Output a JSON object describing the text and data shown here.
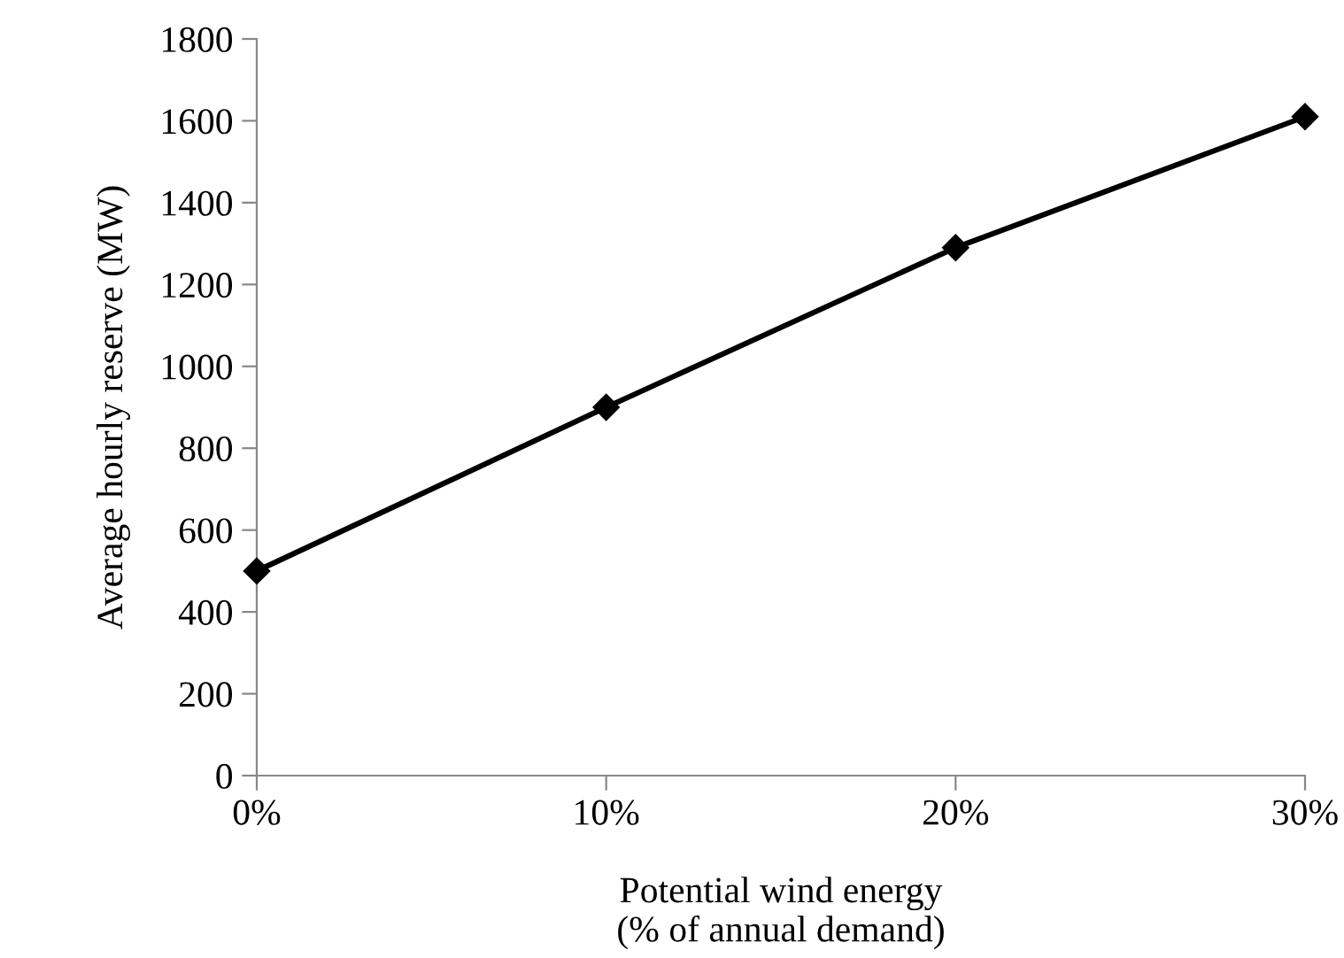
{
  "chart_data": {
    "type": "line",
    "xlabel": "Potential wind energy\n(% of annual demand)",
    "ylabel": "Average hourly reserve (MW)",
    "categories": [
      "0%",
      "10%",
      "20%",
      "30%"
    ],
    "series": [
      {
        "color": "#000000",
        "values": [
          500,
          900,
          1290,
          1610
        ]
      }
    ],
    "ylim": [
      0,
      1800
    ],
    "yticks": [
      0,
      200,
      400,
      600,
      800,
      1000,
      1200,
      1400,
      1600,
      1800
    ],
    "grid": false,
    "legend": false,
    "marker": "diamond",
    "line_style": "solid"
  }
}
